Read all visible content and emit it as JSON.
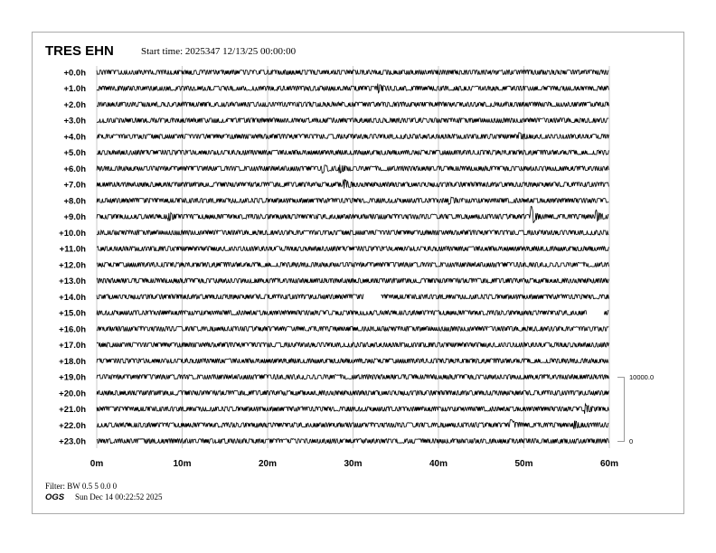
{
  "header": {
    "station": "TRES EHN",
    "start_time": "Start time: 2025347 12/13/25 00:00:00"
  },
  "footer": {
    "filter": "Filter: BW 0.5 5 0.0 0",
    "org": "OGS",
    "generated": "Sun Dec 14 00:22:52 2025"
  },
  "colors": {
    "trace": "#000000",
    "grid": "#c8c8c8",
    "border": "#aaaaaa"
  },
  "chart_data": {
    "type": "line",
    "subtype": "helicorder",
    "x_ticks": [
      "0m",
      "10m",
      "20m",
      "30m",
      "40m",
      "50m",
      "60m"
    ],
    "xlim": [
      0,
      60
    ],
    "row_labels": [
      "+0.0h",
      "+1.0h",
      "+2.0h",
      "+3.0h",
      "+4.0h",
      "+5.0h",
      "+6.0h",
      "+7.0h",
      "+8.0h",
      "+9.0h",
      "+10.0h",
      "+11.0h",
      "+12.0h",
      "+13.0h",
      "+14.0h",
      "+15.0h",
      "+16.0h",
      "+17.0h",
      "+18.0h",
      "+19.0h",
      "+20.0h",
      "+21.0h",
      "+22.0h",
      "+23.0h"
    ],
    "grid": true,
    "scale_bar": {
      "top_label": "10000.0",
      "bottom_label": "0"
    },
    "data_gaps_minutes": [
      {
        "row": 14,
        "start": 31.3,
        "end": 33.2
      },
      {
        "row": 15,
        "start": 57.4,
        "end": 59.4
      }
    ],
    "events_minutes": [
      {
        "row": 1,
        "minute": 33,
        "amplitude": 1.5
      },
      {
        "row": 4,
        "minute": 49.5,
        "amplitude": 1.5
      },
      {
        "row": 6,
        "minute": 26.5,
        "amplitude": 1.6
      },
      {
        "row": 6,
        "minute": 28.5,
        "amplitude": 1.6
      },
      {
        "row": 7,
        "minute": 29,
        "amplitude": 2
      },
      {
        "row": 8,
        "minute": 41.3,
        "amplitude": 1.6
      },
      {
        "row": 9,
        "minute": 8.5,
        "amplitude": 1.6
      },
      {
        "row": 9,
        "minute": 50.9,
        "amplitude": 5
      },
      {
        "row": 9,
        "minute": 58.5,
        "amplitude": 2.5
      },
      {
        "row": 21,
        "minute": 57.2,
        "amplitude": 2
      },
      {
        "row": 22,
        "minute": 48.5,
        "amplitude": 2.2
      },
      {
        "row": 22,
        "minute": 56,
        "amplitude": 1.5
      }
    ]
  }
}
